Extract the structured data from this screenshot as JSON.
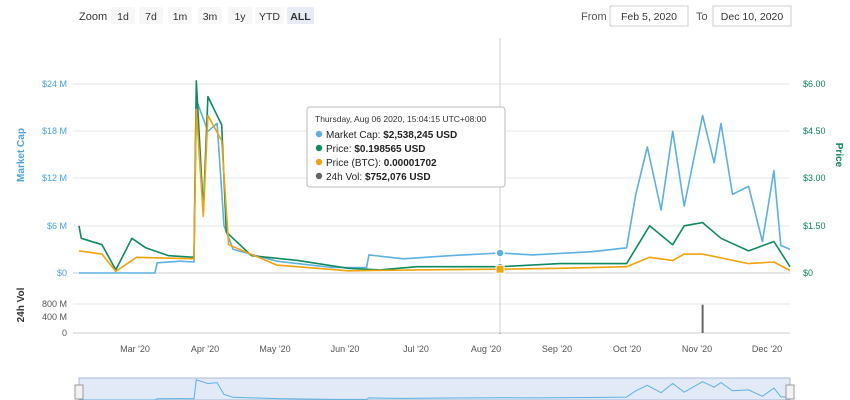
{
  "toolbar": {
    "zoom_label": "Zoom",
    "buttons": [
      {
        "label": "1d",
        "active": false
      },
      {
        "label": "7d",
        "active": false
      },
      {
        "label": "1m",
        "active": false
      },
      {
        "label": "3m",
        "active": false
      },
      {
        "label": "1y",
        "active": false
      },
      {
        "label": "YTD",
        "active": false
      },
      {
        "label": "ALL",
        "active": true
      }
    ],
    "from_label": "From",
    "from_value": "Feb 5, 2020",
    "to_label": "To",
    "to_value": "Dec 10, 2020"
  },
  "colors": {
    "market_cap": "#5cb1e3",
    "price": "#0f8b62",
    "price_btc": "#f0a30a",
    "volume": "#666666",
    "left_axis": "#4aa3e0",
    "right_axis": "#10855e",
    "navigator_fill": "#c9d9ee"
  },
  "tooltip": {
    "header": "Thursday, Aug 06 2020, 15:04:15 UTC+08:00",
    "rows": [
      {
        "label": "Market Cap:",
        "value": "$2,538,245 USD",
        "color": "#5cb1e3"
      },
      {
        "label": "Price:",
        "value": "$0.198565 USD",
        "color": "#0f8b62"
      },
      {
        "label": "Price (BTC):",
        "value": "0.00001702",
        "color": "#f0a30a"
      },
      {
        "label": "24h Vol:",
        "value": "$752,076 USD",
        "color": "#666666"
      }
    ]
  },
  "chart_data": {
    "type": "line",
    "left_axis": {
      "title": "Market Cap",
      "ticks": [
        "$0",
        "$6 M",
        "$12 M",
        "$18 M",
        "$24 M"
      ],
      "range": [
        0,
        24000000
      ]
    },
    "right_axis": {
      "title": "Price",
      "ticks": [
        "$0",
        "$1.50",
        "$3.00",
        "$4.50",
        "$6.00"
      ],
      "range": [
        0,
        6
      ]
    },
    "volume_axis": {
      "title": "24h Vol",
      "ticks": [
        "0",
        "400 M",
        "800 M"
      ],
      "range": [
        0,
        800000000
      ]
    },
    "x_ticks": [
      "Mar '20",
      "Apr '20",
      "May '20",
      "Jun '20",
      "Jul '20",
      "Aug '20",
      "Sep '20",
      "Oct '20",
      "Nov '20",
      "Dec '20"
    ],
    "x_range": [
      "2020-02-05",
      "2020-12-10"
    ],
    "series": [
      {
        "name": "Market Cap",
        "axis": "left",
        "points": [
          [
            "2020-02-05",
            0
          ],
          [
            "2020-03-09",
            0
          ],
          [
            "2020-03-10",
            1300000
          ],
          [
            "2020-03-20",
            1500000
          ],
          [
            "2020-03-26",
            1400000
          ],
          [
            "2020-03-27",
            22000000
          ],
          [
            "2020-04-01",
            18000000
          ],
          [
            "2020-04-05",
            19000000
          ],
          [
            "2020-04-08",
            6000000
          ],
          [
            "2020-04-12",
            3000000
          ],
          [
            "2020-05-01",
            1500000
          ],
          [
            "2020-05-25",
            700000
          ],
          [
            "2020-06-09",
            700000
          ],
          [
            "2020-06-10",
            2300000
          ],
          [
            "2020-06-25",
            1800000
          ],
          [
            "2020-07-15",
            2200000
          ],
          [
            "2020-08-06",
            2538245
          ],
          [
            "2020-08-20",
            2300000
          ],
          [
            "2020-09-15",
            2700000
          ],
          [
            "2020-09-30",
            3200000
          ],
          [
            "2020-10-04",
            10000000
          ],
          [
            "2020-10-09",
            16000000
          ],
          [
            "2020-10-15",
            8000000
          ],
          [
            "2020-10-20",
            18000000
          ],
          [
            "2020-10-25",
            8500000
          ],
          [
            "2020-11-02",
            20000000
          ],
          [
            "2020-11-07",
            14000000
          ],
          [
            "2020-11-10",
            19000000
          ],
          [
            "2020-11-15",
            10000000
          ],
          [
            "2020-11-22",
            11000000
          ],
          [
            "2020-11-28",
            4000000
          ],
          [
            "2020-12-03",
            13000000
          ],
          [
            "2020-12-06",
            3500000
          ],
          [
            "2020-12-10",
            3000000
          ]
        ]
      },
      {
        "name": "Price",
        "axis": "right",
        "points": [
          [
            "2020-02-05",
            1.5
          ],
          [
            "2020-02-06",
            1.1
          ],
          [
            "2020-02-15",
            0.9
          ],
          [
            "2020-02-21",
            0.1
          ],
          [
            "2020-02-28",
            1.1
          ],
          [
            "2020-03-05",
            0.8
          ],
          [
            "2020-03-15",
            0.55
          ],
          [
            "2020-03-26",
            0.5
          ],
          [
            "2020-03-27",
            6.1
          ],
          [
            "2020-03-30",
            2.0
          ],
          [
            "2020-04-01",
            5.6
          ],
          [
            "2020-04-05",
            5.0
          ],
          [
            "2020-04-07",
            4.7
          ],
          [
            "2020-04-09",
            1.3
          ],
          [
            "2020-04-20",
            0.55
          ],
          [
            "2020-05-10",
            0.4
          ],
          [
            "2020-06-01",
            0.15
          ],
          [
            "2020-06-15",
            0.1
          ],
          [
            "2020-07-01",
            0.2
          ],
          [
            "2020-08-06",
            0.198565
          ],
          [
            "2020-09-01",
            0.3
          ],
          [
            "2020-09-30",
            0.3
          ],
          [
            "2020-10-10",
            1.5
          ],
          [
            "2020-10-20",
            0.9
          ],
          [
            "2020-10-25",
            1.5
          ],
          [
            "2020-11-02",
            1.6
          ],
          [
            "2020-11-10",
            1.1
          ],
          [
            "2020-11-22",
            0.7
          ],
          [
            "2020-12-03",
            1.0
          ],
          [
            "2020-12-10",
            0.2
          ]
        ]
      },
      {
        "name": "Price (BTC)",
        "axis": "right",
        "points": [
          [
            "2020-02-05",
            0.7
          ],
          [
            "2020-02-15",
            0.6
          ],
          [
            "2020-02-21",
            0.05
          ],
          [
            "2020-03-01",
            0.5
          ],
          [
            "2020-03-26",
            0.45
          ],
          [
            "2020-03-27",
            5.2
          ],
          [
            "2020-03-30",
            1.8
          ],
          [
            "2020-04-01",
            5.0
          ],
          [
            "2020-04-07",
            4.2
          ],
          [
            "2020-04-10",
            0.9
          ],
          [
            "2020-05-01",
            0.25
          ],
          [
            "2020-06-01",
            0.07
          ],
          [
            "2020-07-01",
            0.1
          ],
          [
            "2020-08-06",
            0.12
          ],
          [
            "2020-09-01",
            0.15
          ],
          [
            "2020-09-30",
            0.2
          ],
          [
            "2020-10-10",
            0.5
          ],
          [
            "2020-10-20",
            0.4
          ],
          [
            "2020-10-25",
            0.6
          ],
          [
            "2020-11-02",
            0.6
          ],
          [
            "2020-11-22",
            0.3
          ],
          [
            "2020-12-03",
            0.35
          ],
          [
            "2020-12-10",
            0.08
          ]
        ]
      }
    ],
    "volume": [
      {
        "date": "2020-11-02",
        "value": 780000000
      },
      {
        "date": "2020-08-06",
        "value": 752076
      }
    ]
  }
}
